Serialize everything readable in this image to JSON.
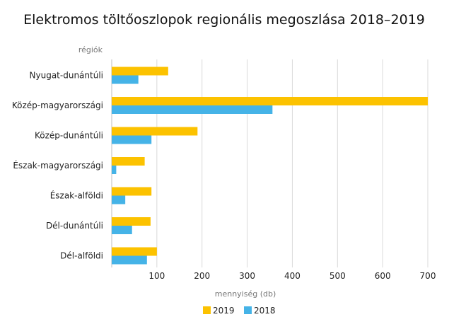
{
  "chart_data": {
    "type": "bar",
    "orientation": "horizontal",
    "title": "Elektromos töltőoszlopok regionális megoszlása 2018–2019",
    "ylabel": "régiók",
    "xlabel": "mennyiség (db)",
    "categories": [
      "Nyugat-dunántúli",
      "Közép-magyarországi",
      "Közép-dunántúli",
      "Észak-magyarországi",
      "Észak-alföldi",
      "Dél-dunántúli",
      "Dél-alföldi"
    ],
    "series": [
      {
        "name": "2019",
        "color": "#fcc200",
        "values": [
          125,
          700,
          190,
          73,
          88,
          86,
          100
        ]
      },
      {
        "name": "2018",
        "color": "#45b3e7",
        "values": [
          59,
          356,
          88,
          10,
          30,
          45,
          78
        ]
      }
    ],
    "xticks": [
      100,
      200,
      300,
      400,
      500,
      600,
      700
    ],
    "xlim": [
      0,
      700
    ],
    "grid": true,
    "legend_position": "bottom"
  }
}
